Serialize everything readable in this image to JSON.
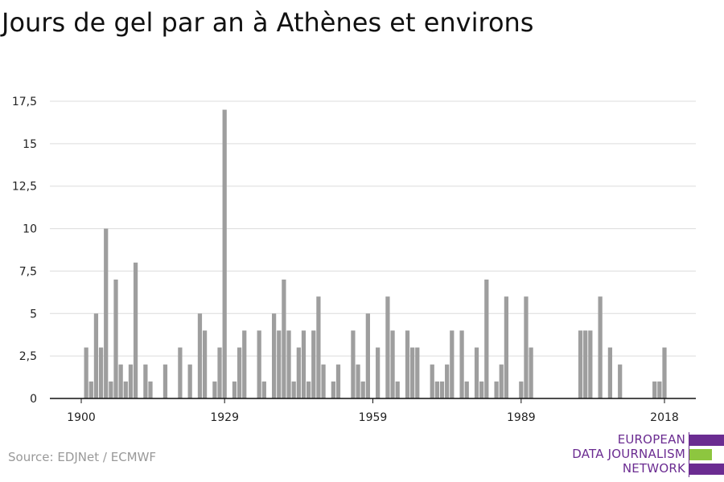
{
  "title": "Jours de gel par an à Athènes et environs",
  "source": "Source: EDJNet / ECMWF",
  "logo": {
    "lines": [
      "EUROPEAN",
      "DATA JOURNALISM",
      "NETWORK"
    ],
    "colors": {
      "purple": "#6b2c91",
      "green": "#8dc63f"
    }
  },
  "colors": {
    "bar": "#9e9e9e",
    "grid": "#dcdcdc",
    "axis": "#111111"
  },
  "chart_data": {
    "type": "bar",
    "title": "Jours de gel par an à Athènes et environs",
    "xlabel": "",
    "ylabel": "",
    "ylim": [
      0,
      17.5
    ],
    "yticks": [
      0,
      2.5,
      5,
      7.5,
      10,
      12.5,
      15,
      17.5
    ],
    "ytick_labels": [
      "0",
      "2,5",
      "5",
      "7,5",
      "10",
      "12,5",
      "15",
      "17,5"
    ],
    "xticks": [
      1900,
      1929,
      1959,
      1989,
      2018
    ],
    "xtick_labels": [
      "1900",
      "1929",
      "1959",
      "1989",
      "2018"
    ],
    "grid": true,
    "x": [
      1900,
      1901,
      1902,
      1903,
      1904,
      1905,
      1906,
      1907,
      1908,
      1909,
      1910,
      1911,
      1912,
      1913,
      1914,
      1915,
      1916,
      1917,
      1918,
      1919,
      1920,
      1921,
      1922,
      1923,
      1924,
      1925,
      1926,
      1927,
      1928,
      1929,
      1930,
      1931,
      1932,
      1933,
      1934,
      1935,
      1936,
      1937,
      1938,
      1939,
      1940,
      1941,
      1942,
      1943,
      1944,
      1945,
      1946,
      1947,
      1948,
      1949,
      1950,
      1951,
      1952,
      1953,
      1954,
      1955,
      1956,
      1957,
      1958,
      1959,
      1960,
      1961,
      1962,
      1963,
      1964,
      1965,
      1966,
      1967,
      1968,
      1969,
      1970,
      1971,
      1972,
      1973,
      1974,
      1975,
      1976,
      1977,
      1978,
      1979,
      1980,
      1981,
      1982,
      1983,
      1984,
      1985,
      1986,
      1987,
      1988,
      1989,
      1990,
      1991,
      1992,
      1993,
      1994,
      1995,
      1996,
      1997,
      1998,
      1999,
      2000,
      2001,
      2002,
      2003,
      2004,
      2005,
      2006,
      2007,
      2008,
      2009,
      2010,
      2011,
      2012,
      2013,
      2014,
      2015,
      2016,
      2017,
      2018,
      2019,
      2020
    ],
    "values": [
      0,
      3,
      1,
      5,
      3,
      10,
      1,
      7,
      2,
      1,
      2,
      8,
      0,
      2,
      1,
      0,
      0,
      2,
      0,
      0,
      3,
      0,
      2,
      0,
      5,
      4,
      0,
      1,
      3,
      17,
      0,
      1,
      3,
      4,
      0,
      0,
      4,
      1,
      0,
      5,
      4,
      7,
      4,
      1,
      3,
      4,
      1,
      4,
      6,
      2,
      0,
      1,
      2,
      0,
      0,
      4,
      2,
      1,
      5,
      0,
      3,
      0,
      6,
      4,
      1,
      0,
      4,
      3,
      3,
      0,
      0,
      2,
      1,
      1,
      2,
      4,
      0,
      4,
      1,
      0,
      3,
      1,
      7,
      0,
      1,
      2,
      6,
      0,
      0,
      1,
      6,
      3,
      0,
      0,
      0,
      0,
      0,
      0,
      0,
      0,
      0,
      4,
      4,
      4,
      0,
      6,
      0,
      3,
      0,
      2,
      0,
      0,
      0,
      0,
      0,
      0,
      1,
      1,
      3,
      0,
      0
    ]
  }
}
